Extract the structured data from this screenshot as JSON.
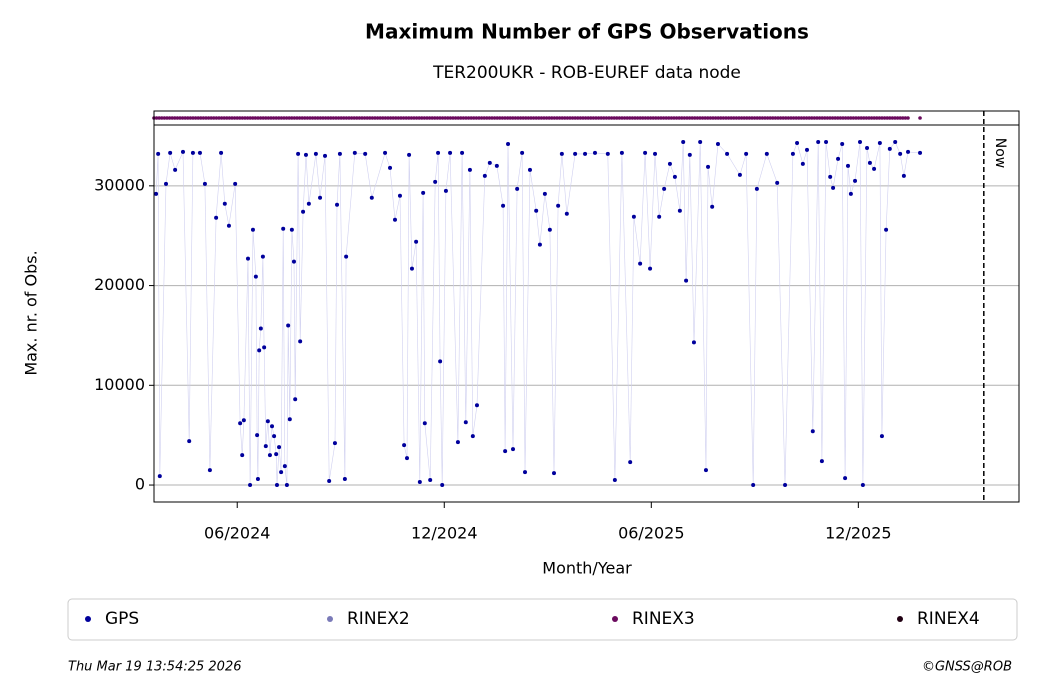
{
  "chart_data": {
    "type": "scatter",
    "title": "Maximum Number of GPS Observations",
    "subtitle": "TER200UKR - ROB-EUREF data node",
    "xlabel": "Month/Year",
    "ylabel": "Max. nr. of Obs.",
    "xlim": [
      2024.216,
      2026.305
    ],
    "xticks": [
      {
        "value": 2024.417,
        "label": "06/2024"
      },
      {
        "value": 2024.917,
        "label": "12/2024"
      },
      {
        "value": 2025.417,
        "label": "06/2025"
      },
      {
        "value": 2025.917,
        "label": "12/2025"
      }
    ],
    "ylim": [
      -1700,
      36100
    ],
    "yticks": [
      0,
      10000,
      20000,
      30000
    ],
    "grid": true,
    "now": {
      "x": 2026.22,
      "label": "Now"
    },
    "series": [
      {
        "name": "GPS",
        "color": "#00009c",
        "line_color": "#d0d0f0",
        "x": [
          2024.221,
          2024.226,
          2024.23,
          2024.245,
          2024.255,
          2024.267,
          2024.286,
          2024.301,
          2024.31,
          2024.327,
          2024.339,
          2024.351,
          2024.366,
          2024.378,
          2024.387,
          2024.397,
          2024.412,
          2024.424,
          2024.429,
          2024.433,
          2024.443,
          2024.448,
          2024.455,
          2024.462,
          2024.465,
          2024.467,
          2024.47,
          2024.474,
          2024.479,
          2024.482,
          2024.486,
          2024.491,
          2024.496,
          2024.501,
          2024.506,
          2024.511,
          2024.513,
          2024.518,
          2024.523,
          2024.528,
          2024.532,
          2024.537,
          2024.54,
          2024.544,
          2024.549,
          2024.554,
          2024.557,
          2024.564,
          2024.569,
          2024.576,
          2024.583,
          2024.59,
          2024.607,
          2024.617,
          2024.629,
          2024.639,
          2024.653,
          2024.658,
          2024.665,
          2024.677,
          2024.68,
          2024.701,
          2024.726,
          2024.742,
          2024.774,
          2024.786,
          2024.798,
          2024.81,
          2024.82,
          2024.827,
          2024.832,
          2024.839,
          2024.849,
          2024.858,
          2024.866,
          2024.87,
          2024.883,
          2024.895,
          2024.902,
          2024.907,
          2024.912,
          2024.921,
          2024.931,
          2024.95,
          2024.96,
          2024.969,
          2024.979,
          2024.986,
          2024.996,
          2025.015,
          2025.027,
          2025.044,
          2025.059,
          2025.064,
          2025.071,
          2025.083,
          2025.093,
          2025.105,
          2025.112,
          2025.124,
          2025.139,
          2025.148,
          2025.16,
          2025.172,
          2025.182,
          2025.192,
          2025.201,
          2025.213,
          2025.233,
          2025.257,
          2025.281,
          2025.312,
          2025.329,
          2025.346,
          2025.366,
          2025.375,
          2025.39,
          2025.402,
          2025.414,
          2025.426,
          2025.436,
          2025.448,
          2025.462,
          2025.474,
          2025.486,
          2025.494,
          2025.501,
          2025.51,
          2025.52,
          2025.535,
          2025.549,
          2025.554,
          2025.564,
          2025.578,
          2025.6,
          2025.631,
          2025.646,
          2025.663,
          2025.672,
          2025.696,
          2025.721,
          2025.74,
          2025.759,
          2025.769,
          2025.783,
          2025.793,
          2025.807,
          2025.82,
          2025.829,
          2025.839,
          2025.849,
          2025.856,
          2025.868,
          2025.878,
          2025.885,
          2025.892,
          2025.899,
          2025.909,
          2025.921,
          2025.928,
          2025.938,
          2025.945,
          2025.955,
          2025.969,
          2025.974,
          2025.984,
          2025.993,
          2026.006,
          2026.018,
          2026.027,
          2026.037,
          2026.066
        ],
        "values": [
          29200,
          33200,
          900,
          30200,
          33300,
          31600,
          33400,
          4400,
          33300,
          33300,
          30200,
          1500,
          26800,
          33300,
          28200,
          26000,
          30200,
          6200,
          3000,
          6500,
          22700,
          0,
          25600,
          20900,
          5000,
          600,
          13500,
          15700,
          22900,
          13800,
          3900,
          6400,
          3000,
          5900,
          4900,
          3100,
          0,
          3800,
          1300,
          25700,
          1900,
          0,
          16000,
          6600,
          25600,
          22400,
          8600,
          33200,
          14400,
          27400,
          33100,
          28200,
          33200,
          28800,
          33000,
          400,
          4200,
          28100,
          33200,
          600,
          22900,
          33300,
          33200,
          28800,
          33300,
          31800,
          26600,
          29000,
          4000,
          2700,
          33100,
          21700,
          24400,
          300,
          29300,
          6200,
          500,
          30400,
          33300,
          12400,
          0,
          29500,
          33300,
          4300,
          33300,
          6300,
          31600,
          4900,
          8000,
          31000,
          32300,
          32000,
          28000,
          3400,
          34200,
          3600,
          29700,
          33300,
          1300,
          31600,
          27500,
          24100,
          29200,
          25600,
          1200,
          28000,
          33200,
          27200,
          33200,
          33200,
          33300,
          33200,
          500,
          33300,
          2300,
          26900,
          22200,
          33300,
          21700,
          33200,
          26900,
          29700,
          32200,
          30900,
          27500,
          34400,
          20500,
          33100,
          14300,
          34400,
          1500,
          31900,
          27900,
          34200,
          33200,
          31100,
          33200,
          0,
          29700,
          33200,
          30300,
          0,
          33200,
          34300,
          32200,
          33600,
          5400,
          34400,
          2400,
          34400,
          30900,
          29800,
          32700,
          34200,
          700,
          32000,
          29200,
          30500,
          34400,
          0,
          33800,
          32300,
          31700,
          34300,
          4900,
          25600,
          33700,
          34400,
          33200,
          31000,
          33400,
          33300
        ]
      },
      {
        "name": "RINEX2",
        "color": "#7a7ab8",
        "x": [],
        "values": []
      },
      {
        "name": "RINEX3",
        "color": "#6b0a5e",
        "periods": [
          [
            2024.216,
            2026.037
          ],
          [
            2026.066,
            2026.066
          ]
        ]
      },
      {
        "name": "RINEX4",
        "color": "#200012",
        "x": [],
        "values": []
      }
    ],
    "footer_left": "Thu Mar 19 13:54:25 2026",
    "footer_right": "©GNSS@ROB"
  }
}
